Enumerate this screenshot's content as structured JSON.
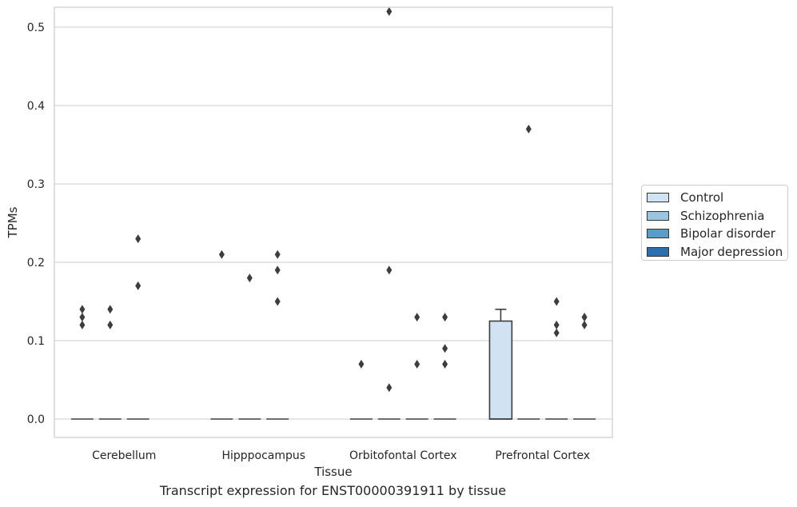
{
  "chart_data": {
    "type": "box",
    "title": "Transcript expression for ENST00000391911 by tissue",
    "xlabel": "Tissue",
    "ylabel": "TPMs",
    "ylim": [
      -0.026,
      0.546
    ],
    "yticks": [
      "0.0",
      "0.1",
      "0.2",
      "0.3",
      "0.4",
      "0.5"
    ],
    "ytick_values": [
      0.0,
      0.1,
      0.2,
      0.3,
      0.4,
      0.5
    ],
    "grid": true,
    "legend_position": "right",
    "categories": [
      "Cerebellum",
      "Hipppocampus",
      "Orbitofontal Cortex",
      "Prefrontal Cortex"
    ],
    "series": [
      {
        "name": "Control",
        "color": "#d1e2f2",
        "boxes": [
          {
            "q1": 0,
            "median": 0,
            "q3": 0,
            "whisker_low": 0,
            "whisker_high": 0,
            "outliers": [
              0.14,
              0.13,
              0.12
            ]
          },
          {
            "q1": 0,
            "median": 0,
            "q3": 0,
            "whisker_low": 0,
            "whisker_high": 0,
            "outliers": [
              0.21
            ]
          },
          {
            "q1": 0,
            "median": 0,
            "q3": 0,
            "whisker_low": 0,
            "whisker_high": 0,
            "outliers": [
              0.07
            ]
          },
          {
            "q1": 0,
            "median": 0,
            "q3": 0.125,
            "whisker_low": 0,
            "whisker_high": 0.14,
            "outliers": []
          }
        ]
      },
      {
        "name": "Schizophrenia",
        "color": "#9bc4e0",
        "boxes": [
          {
            "q1": 0,
            "median": 0,
            "q3": 0,
            "whisker_low": 0,
            "whisker_high": 0,
            "outliers": [
              0.14,
              0.12
            ]
          },
          {
            "q1": 0,
            "median": 0,
            "q3": 0,
            "whisker_low": 0,
            "whisker_high": 0,
            "outliers": [
              0.18
            ]
          },
          {
            "q1": 0,
            "median": 0,
            "q3": 0,
            "whisker_low": 0,
            "whisker_high": 0,
            "outliers": [
              0.52,
              0.19,
              0.04
            ]
          },
          {
            "q1": 0,
            "median": 0,
            "q3": 0,
            "whisker_low": 0,
            "whisker_high": 0,
            "outliers": [
              0.37
            ]
          }
        ]
      },
      {
        "name": "Bipolar disorder",
        "color": "#5b9cc8",
        "boxes": [
          {
            "q1": 0,
            "median": 0,
            "q3": 0,
            "whisker_low": 0,
            "whisker_high": 0,
            "outliers": [
              0.23,
              0.17
            ]
          },
          {
            "q1": 0,
            "median": 0,
            "q3": 0,
            "whisker_low": 0,
            "whisker_high": 0,
            "outliers": [
              0.21,
              0.19,
              0.15
            ]
          },
          {
            "q1": 0,
            "median": 0,
            "q3": 0,
            "whisker_low": 0,
            "whisker_high": 0,
            "outliers": [
              0.13,
              0.07
            ]
          },
          {
            "q1": 0,
            "median": 0,
            "q3": 0,
            "whisker_low": 0,
            "whisker_high": 0,
            "outliers": [
              0.15,
              0.12,
              0.11
            ]
          }
        ]
      },
      {
        "name": "Major depression",
        "color": "#2c6fb0",
        "boxes": [
          null,
          null,
          {
            "q1": 0,
            "median": 0,
            "q3": 0,
            "whisker_low": 0,
            "whisker_high": 0,
            "outliers": [
              0.13,
              0.09,
              0.07
            ]
          },
          {
            "q1": 0,
            "median": 0,
            "q3": 0,
            "whisker_low": 0,
            "whisker_high": 0,
            "outliers": [
              0.13,
              0.13,
              0.12
            ]
          }
        ]
      }
    ]
  }
}
